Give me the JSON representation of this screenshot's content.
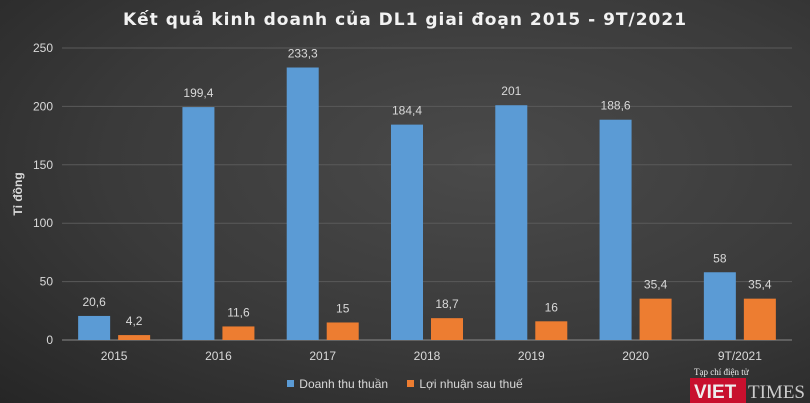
{
  "chart_data": {
    "type": "bar",
    "title": "Kết quả kinh doanh của DL1 giai đoạn 2015 - 9T/2021",
    "ylabel": "Tỉ đồng",
    "xlabel": "",
    "ylim": [
      0,
      250
    ],
    "yticks": [
      0,
      50,
      100,
      150,
      200,
      250
    ],
    "grid": true,
    "legend_placement": "bottom",
    "categories": [
      "2015",
      "2016",
      "2017",
      "2018",
      "2019",
      "2020",
      "9T/2021"
    ],
    "series": [
      {
        "name": "Doanh thu thuần",
        "color": "#5b9bd5",
        "values": [
          20.6,
          199.4,
          233.3,
          184.4,
          201,
          188.6,
          58
        ],
        "labels": [
          "20,6",
          "199,4",
          "233,3",
          "184,4",
          "201",
          "188,6",
          "58"
        ]
      },
      {
        "name": "Lợi nhuận sau thuế",
        "color": "#ed7d31",
        "values": [
          4.2,
          11.6,
          15,
          18.7,
          16,
          35.4,
          35.4
        ],
        "labels": [
          "4,2",
          "11,6",
          "15",
          "18,7",
          "16",
          "35,4",
          "35,4"
        ]
      }
    ]
  },
  "watermark": {
    "top": "Tạp chí điện tử",
    "brand_left": "VIET",
    "brand_right": "TIMES"
  }
}
